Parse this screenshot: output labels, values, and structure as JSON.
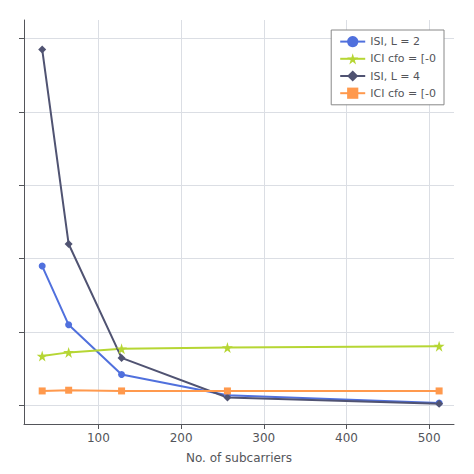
{
  "chart_data": {
    "type": "line",
    "xlabel": "No. of subcarriers",
    "x": [
      32,
      64,
      128,
      256,
      512
    ],
    "series": [
      {
        "name": "ISI, L = 2",
        "marker": "circle",
        "values": [
          0.38,
          0.22,
          0.085,
          0.028,
          0.007
        ]
      },
      {
        "name": "ICI cfo = [-0",
        "marker": "star",
        "values": [
          0.135,
          0.145,
          0.155,
          0.158,
          0.162
        ]
      },
      {
        "name": "ISI, L = 4",
        "marker": "diamond",
        "values": [
          0.97,
          0.44,
          0.13,
          0.022,
          0.005
        ]
      },
      {
        "name": "ICI cfo = [-0",
        "marker": "square",
        "values": [
          0.04,
          0.042,
          0.04,
          0.04,
          0.04
        ]
      }
    ],
    "xlim": [
      10,
      530
    ],
    "ylim": [
      -0.05,
      1.05
    ],
    "xticks": [
      100,
      200,
      300,
      400,
      500
    ],
    "yticks": [
      0,
      0.2,
      0.4,
      0.6,
      0.8,
      1.0
    ],
    "grid": true,
    "legend": "upper right",
    "tick_labels": "x"
  }
}
